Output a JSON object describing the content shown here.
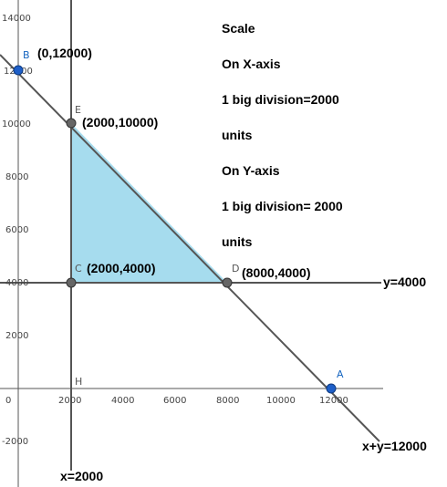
{
  "axes": {
    "x_ticks": [
      "0",
      "2000",
      "4000",
      "6000",
      "8000",
      "10000",
      "12000"
    ],
    "y_ticks": [
      "14000",
      "12000",
      "10000",
      "8000",
      "6000",
      "4000",
      "2000",
      "-2000"
    ]
  },
  "lines": {
    "sum_line": "x+y=12000",
    "horizontal_line": "y=4000",
    "vertical_line": "x=2000"
  },
  "points": {
    "A": {
      "letter": "A"
    },
    "B": {
      "letter": "B",
      "coord": "(0,12000)"
    },
    "C": {
      "letter": "C",
      "coord": "(2000,4000)"
    },
    "D": {
      "letter": "D",
      "coord": "(8000,4000)"
    },
    "E": {
      "letter": "E",
      "coord": "(2000,10000)"
    },
    "H": {
      "letter": "H"
    }
  },
  "scale_note": [
    "Scale",
    "On X-axis",
    "1 big division=2000",
    "units",
    "On Y-axis",
    "1 big division= 2000",
    "units"
  ],
  "colors": {
    "feasible_region": "#a6dcee",
    "line": "#555555",
    "point_gray": "#666666",
    "point_blue": "#1e5fc8"
  }
}
